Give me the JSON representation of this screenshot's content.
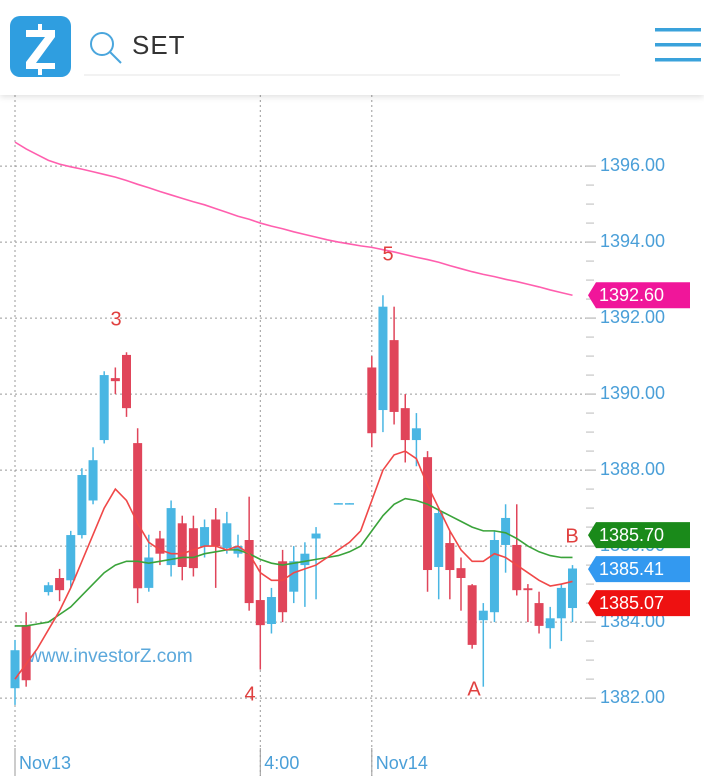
{
  "header": {
    "search": "SET"
  },
  "chart_data": {
    "type": "candlestick",
    "categories": [
      "Nov13",
      null,
      null,
      null,
      null,
      null,
      null,
      null,
      null,
      null,
      null,
      null,
      null,
      null,
      null,
      null,
      null,
      null,
      null,
      null,
      null,
      null,
      "4:00",
      null,
      null,
      null,
      null,
      null,
      null,
      null,
      null,
      null,
      "Nov14",
      null,
      null,
      null,
      null,
      null,
      null,
      null,
      null,
      null,
      null,
      null,
      null,
      null,
      null,
      null,
      null,
      null,
      null
    ],
    "open": [
      1382.26,
      1383.92,
      null,
      1384.79,
      1385.16,
      1385.1,
      1386.29,
      1387.2,
      1388.79,
      1390.42,
      1391.03,
      1388.71,
      1384.9,
      1386.2,
      1385.5,
      1386.6,
      1386.47,
      1386.0,
      1386.7,
      1385.95,
      1385.8,
      1386.16,
      1384.58,
      1383.95,
      1385.6,
      1384.8,
      1385.5,
      1386.2,
      null,
      1387.12,
      1387.12,
      null,
      1390.7,
      1389.58,
      1391.42,
      1389.63,
      1388.79,
      1388.34,
      1385.45,
      1386.08,
      1385.42,
      1384.97,
      1384.05,
      1384.26,
      1386.03,
      1386.03,
      1384.89,
      1384.5,
      1383.84,
      1384.1,
      1384.37
    ],
    "high": [
      1383.53,
      1384.26,
      null,
      1385.05,
      1385.4,
      1386.4,
      1388.05,
      1388.6,
      1390.6,
      1390.7,
      1391.1,
      1389.1,
      1386.3,
      1386.4,
      1387.2,
      1386.8,
      1386.8,
      1386.7,
      1387.0,
      1386.9,
      1386.3,
      1387.3,
      1385.5,
      1384.9,
      1385.9,
      1386.0,
      1386.1,
      1386.5,
      null,
      1387.13,
      1387.13,
      null,
      1391.0,
      1392.6,
      1392.3,
      1390.0,
      1389.5,
      1388.5,
      1387.0,
      1386.4,
      1385.7,
      1385.0,
      1384.5,
      1386.4,
      1387.1,
      1387.1,
      1385.0,
      1384.8,
      1384.4,
      1385.0,
      1385.5
    ],
    "low": [
      1381.82,
      1382.3,
      null,
      1384.7,
      1384.55,
      1384.9,
      1386.2,
      1387.1,
      1388.7,
      1390.0,
      1389.4,
      1384.5,
      1384.8,
      1385.5,
      1385.2,
      1385.1,
      1385.2,
      1385.7,
      1384.9,
      1385.8,
      1385.7,
      1384.3,
      1382.75,
      1383.7,
      1384.0,
      1384.5,
      1384.4,
      1384.6,
      null,
      1387.12,
      1387.12,
      null,
      1388.6,
      1389.0,
      1389.2,
      1388.2,
      1388.1,
      1384.8,
      1384.6,
      1384.6,
      1384.3,
      1383.3,
      1382.3,
      1384.0,
      1385.3,
      1384.7,
      1384.0,
      1383.7,
      1383.3,
      1383.5,
      1384.0
    ],
    "close": [
      1383.26,
      1382.47,
      null,
      1384.97,
      1384.84,
      1386.29,
      1387.87,
      1388.26,
      1390.5,
      1390.34,
      1389.63,
      1384.89,
      1385.7,
      1385.8,
      1387.0,
      1385.45,
      1385.42,
      1386.5,
      1386.0,
      1386.6,
      1386.0,
      1384.5,
      1383.92,
      1384.66,
      1384.26,
      1385.6,
      1385.8,
      1386.33,
      null,
      1387.13,
      1387.13,
      null,
      1388.97,
      1392.3,
      1389.53,
      1388.79,
      1389.1,
      1385.37,
      1386.87,
      1385.37,
      1385.16,
      1383.4,
      1384.3,
      1386.16,
      1386.74,
      1384.84,
      1384.84,
      1383.9,
      1384.1,
      1384.9,
      1385.41
    ],
    "up_color": "#49b6e3",
    "down_color": "#e0455a",
    "close_label": "1385.41",
    "close_label_color": "#3399f0",
    "lines": [
      {
        "color": "#ff5fae",
        "tag_color": "#f0169a",
        "end_label": "1392.60",
        "values": [
          1396.63,
          1396.45,
          1396.3,
          1396.15,
          1396.05,
          1395.98,
          1395.92,
          1395.85,
          1395.78,
          1395.71,
          1395.62,
          1395.52,
          1395.43,
          1395.33,
          1395.24,
          1395.15,
          1395.06,
          1394.98,
          1394.88,
          1394.78,
          1394.68,
          1394.6,
          1394.5,
          1394.42,
          1394.35,
          1394.27,
          1394.2,
          1394.13,
          1394.06,
          1394.0,
          1393.95,
          1393.9,
          1393.86,
          1393.8,
          1393.74,
          1393.67,
          1393.6,
          1393.54,
          1393.47,
          1393.38,
          1393.3,
          1393.22,
          1393.15,
          1393.09,
          1393.02,
          1392.96,
          1392.89,
          1392.82,
          1392.74,
          1392.67,
          1392.6
        ]
      },
      {
        "color": "#3aa33a",
        "tag_color": "#1a8a1a",
        "end_label": "1385.70",
        "values": [
          1383.9,
          1383.9,
          1383.95,
          1384.0,
          1384.2,
          1384.4,
          1384.7,
          1385.0,
          1385.3,
          1385.5,
          1385.6,
          1385.6,
          1385.55,
          1385.6,
          1385.65,
          1385.7,
          1385.7,
          1385.8,
          1385.85,
          1385.9,
          1385.9,
          1385.8,
          1385.65,
          1385.55,
          1385.5,
          1385.55,
          1385.6,
          1385.65,
          1385.7,
          1385.75,
          1385.85,
          1386.0,
          1386.4,
          1386.8,
          1387.1,
          1387.25,
          1387.2,
          1387.1,
          1386.95,
          1386.8,
          1386.65,
          1386.5,
          1386.4,
          1386.4,
          1386.35,
          1386.2,
          1386.0,
          1385.85,
          1385.75,
          1385.7,
          1385.7
        ]
      },
      {
        "color": "#f04848",
        "tag_color": "#ee1111",
        "end_label": "1385.07",
        "values": [
          1382.5,
          1382.9,
          1383.3,
          1383.8,
          1384.3,
          1384.9,
          1385.6,
          1386.3,
          1387.0,
          1387.5,
          1387.2,
          1386.6,
          1386.1,
          1385.9,
          1385.8,
          1385.8,
          1385.9,
          1386.0,
          1386.0,
          1385.9,
          1386.0,
          1385.8,
          1385.3,
          1385.1,
          1385.1,
          1385.3,
          1385.4,
          1385.5,
          1385.7,
          1385.9,
          1386.1,
          1386.4,
          1387.2,
          1388.0,
          1388.4,
          1388.5,
          1388.3,
          1387.6,
          1387.0,
          1386.4,
          1385.9,
          1385.6,
          1385.6,
          1385.8,
          1385.7,
          1385.5,
          1385.3,
          1385.1,
          1384.95,
          1385.0,
          1385.07
        ]
      }
    ],
    "ylim": [
      1379.95,
      1397.87
    ],
    "yticks": [
      {
        "value": 1382,
        "label": "1382.00"
      },
      {
        "value": 1384,
        "label": "1384.00"
      },
      {
        "value": 1386,
        "label": "1386.00"
      },
      {
        "value": 1388,
        "label": "1388.00"
      },
      {
        "value": 1390,
        "label": "1390.00"
      },
      {
        "value": 1392,
        "label": "1392.00"
      },
      {
        "value": 1394,
        "label": "1394.00"
      },
      {
        "value": 1396,
        "label": "1396.00"
      }
    ],
    "grid": true,
    "axis_color": "#4a9fd8",
    "annotations": [
      {
        "text": "3"
      },
      {
        "text": "4"
      },
      {
        "text": "5"
      },
      {
        "text": "A"
      },
      {
        "text": "B"
      }
    ],
    "annotation_color": "#e0403f",
    "watermark": "www.investorZ.com"
  }
}
